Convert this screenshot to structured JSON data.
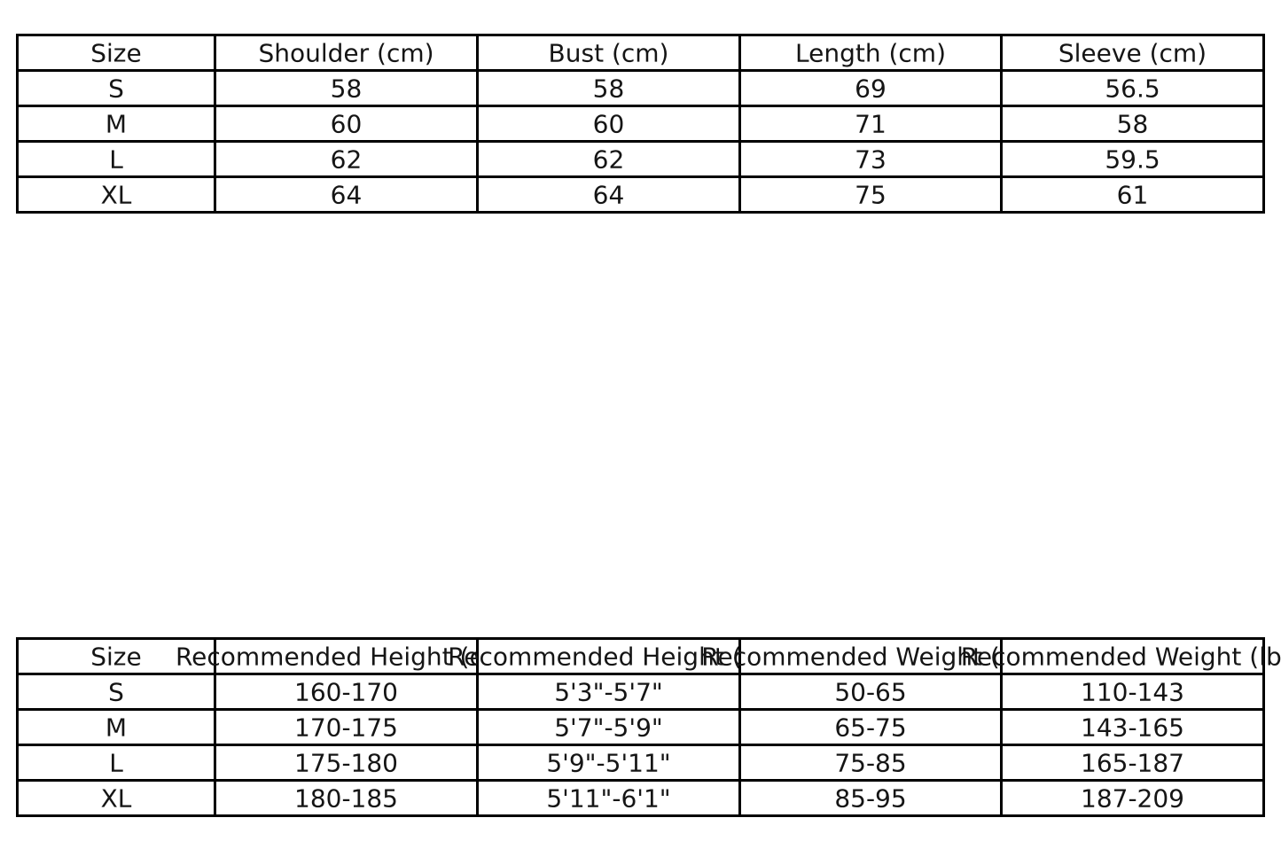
{
  "colors": {
    "background": "#ffffff",
    "table_border": "#000000",
    "table_text": "#151515"
  },
  "chart_data": [
    {
      "type": "table",
      "name": "garment-measurements-table",
      "columns": [
        "Size",
        "Shoulder (cm)",
        "Bust (cm)",
        "Length (cm)",
        "Sleeve (cm)"
      ],
      "rows": [
        [
          "S",
          "58",
          "58",
          "69",
          "56.5"
        ],
        [
          "M",
          "60",
          "60",
          "71",
          "58"
        ],
        [
          "L",
          "62",
          "62",
          "73",
          "59.5"
        ],
        [
          "XL",
          "64",
          "64",
          "75",
          "61"
        ]
      ]
    },
    {
      "type": "table",
      "name": "recommended-height-weight-table",
      "columns": [
        "Size",
        "Recommended Height (cm)",
        "Recommended Height (ft)",
        "Recommended Weight (kg)",
        "Recommended Weight (lbs)"
      ],
      "rows": [
        [
          "S",
          "160-170",
          "5'3\"-5'7\"",
          "50-65",
          "110-143"
        ],
        [
          "M",
          "170-175",
          "5'7\"-5'9\"",
          "65-75",
          "143-165"
        ],
        [
          "L",
          "175-180",
          "5'9\"-5'11\"",
          "75-85",
          "165-187"
        ],
        [
          "XL",
          "180-185",
          "5'11\"-6'1\"",
          "85-95",
          "187-209"
        ]
      ]
    }
  ]
}
